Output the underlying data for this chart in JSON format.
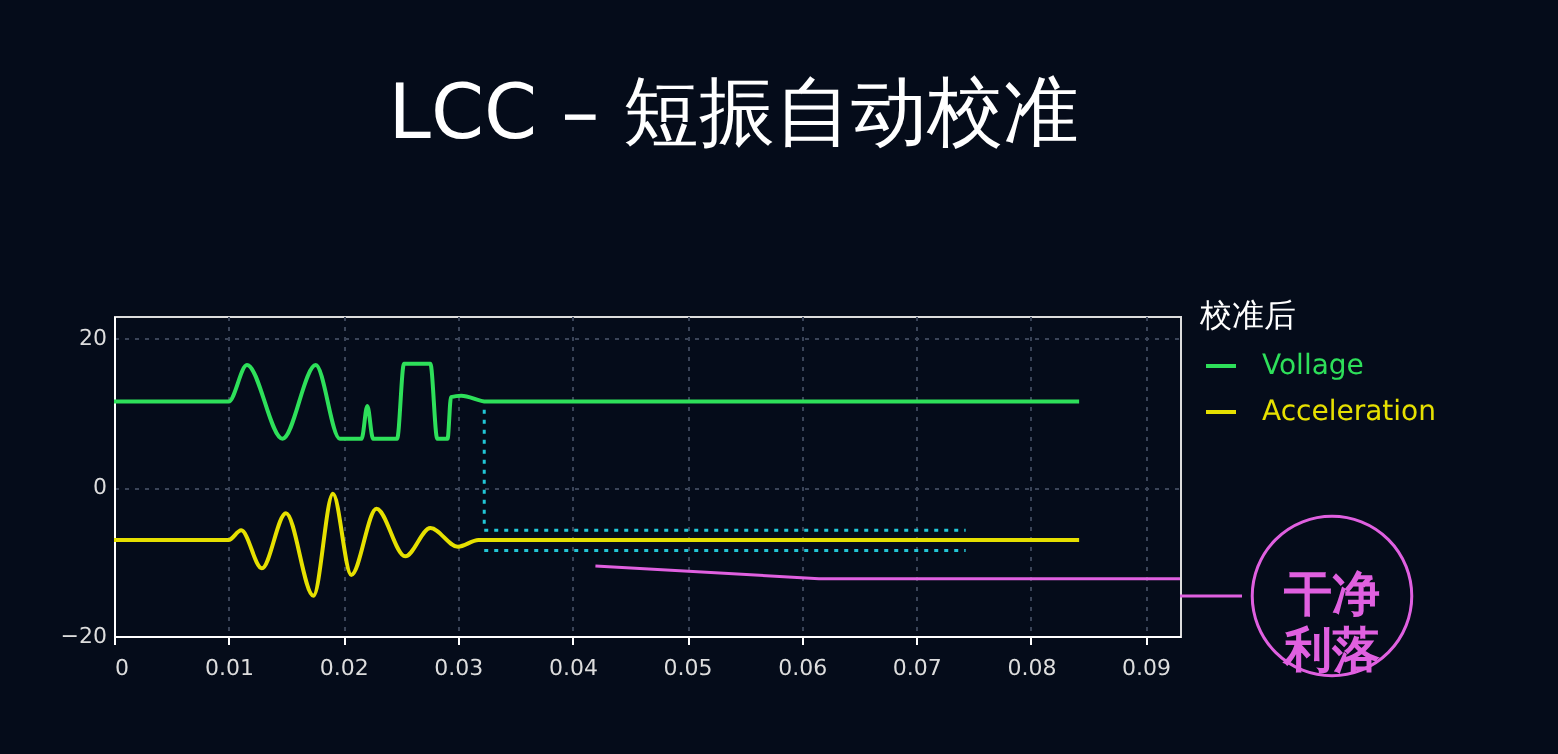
{
  "chart_data": {
    "type": "line",
    "title": "LCC – 短振自动校准",
    "legend_title": "校准后",
    "xlim": [
      0,
      0.093
    ],
    "ylim": [
      -20,
      23
    ],
    "xticks": [
      0,
      0.01,
      0.02,
      0.03,
      0.04,
      0.05,
      0.06,
      0.07,
      0.08,
      0.09
    ],
    "yticks": [
      -20,
      0,
      20
    ],
    "grid": true,
    "legend": "top right",
    "line_style": "solid",
    "marker": "none",
    "series": [
      {
        "name": "Vollage",
        "color": "#2ee05a",
        "x": [
          0,
          0.01,
          0.0116,
          0.0147,
          0.0176,
          0.0197,
          0.0216,
          0.0221,
          0.0226,
          0.0247,
          0.0253,
          0.0276,
          0.0282,
          0.0291,
          0.0294,
          0.0303,
          0.0325,
          0.0842
        ],
        "values": [
          11.5,
          11.5,
          16.4,
          6.5,
          16.4,
          6.5,
          6.5,
          10.9,
          6.5,
          6.5,
          16.6,
          16.6,
          6.5,
          6.5,
          12.1,
          12.3,
          11.5,
          11.5
        ]
      },
      {
        "name": "Acceleration",
        "color": "#e6e000",
        "x": [
          0,
          0.01,
          0.0111,
          0.0129,
          0.015,
          0.0174,
          0.0191,
          0.0207,
          0.0229,
          0.0254,
          0.0276,
          0.03,
          0.0318,
          0.0842
        ],
        "values": [
          -7.1,
          -7.1,
          -5.8,
          -10.9,
          -3.5,
          -14.6,
          -0.9,
          -11.8,
          -2.9,
          -9.3,
          -5.5,
          -8,
          -7.1,
          -7.1
        ]
      },
      {
        "color": "#22c8d8",
        "line_style": "dotted",
        "x": [
          0.0323,
          0.0743
        ],
        "values": [
          -5.8,
          -5.8
        ]
      },
      {
        "color": "#22c8d8",
        "line_style": "dotted",
        "x": [
          0.0323,
          0.0743
        ],
        "values": [
          -8.5,
          -8.5
        ]
      },
      {
        "color": "#22c8d8",
        "line_style": "dotted",
        "x": [
          0.0323,
          0.0323
        ],
        "values": [
          10.4,
          -4.9
        ]
      },
      {
        "color": "#e060e0",
        "line_style": "solid",
        "x": [
          0.042,
          0.0615,
          0.093
        ],
        "values": [
          -10.6,
          -12.3,
          -12.3
        ]
      }
    ],
    "annotations": [
      "干净利落"
    ]
  }
}
